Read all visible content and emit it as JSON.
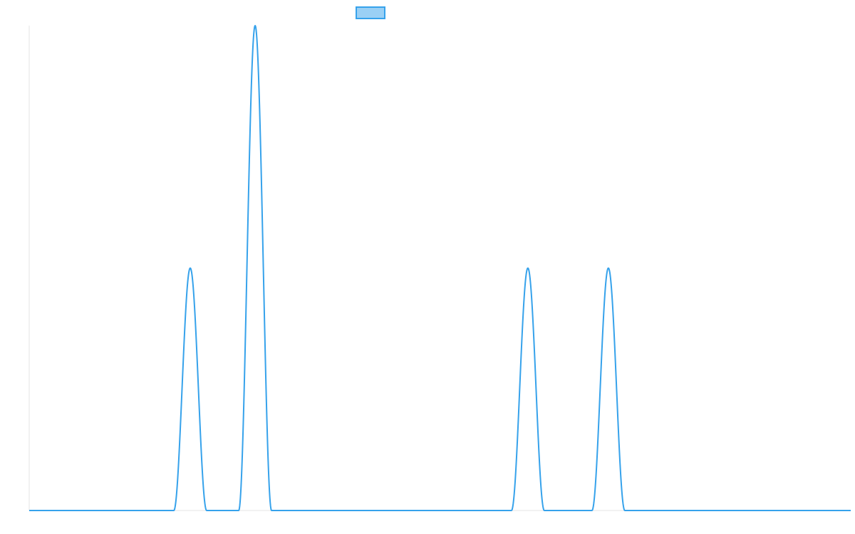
{
  "chart_data": {
    "type": "line",
    "title": "",
    "xlabel": "",
    "ylabel": "",
    "grid": false,
    "legend": {
      "position": "top-center",
      "label": ""
    },
    "xlim": [
      0,
      1
    ],
    "ylim": [
      0,
      1
    ],
    "series": [
      {
        "color": "#36a2eb",
        "fill": "#9ad0f5",
        "peaks": [
          {
            "x": 0.196,
            "value": 0.5,
            "half_width": 0.02
          },
          {
            "x": 0.275,
            "value": 1.0,
            "half_width": 0.02
          },
          {
            "x": 0.607,
            "value": 0.5,
            "half_width": 0.02
          },
          {
            "x": 0.705,
            "value": 0.5,
            "half_width": 0.02
          }
        ],
        "baseline": 0
      }
    ]
  }
}
